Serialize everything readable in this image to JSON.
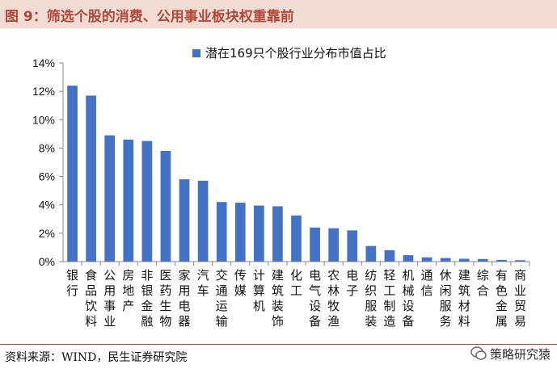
{
  "figure": {
    "title": "图 9：筛选个股的消费、公用事业板块权重靠前",
    "source": "资料来源：WIND，民生证券研究院",
    "watermark": "策略研究猿"
  },
  "colors": {
    "bar": "#4472c4",
    "title": "#b2473b",
    "title_bg": "#f0dcd2"
  },
  "chart_data": {
    "type": "bar",
    "categories": [
      "银行",
      "食品饮料",
      "公用事业",
      "房地产",
      "非银金融",
      "医药生物",
      "家用电器",
      "汽车",
      "交通运输",
      "传媒",
      "计算机",
      "建筑装饰",
      "化工",
      "电气设备",
      "农林牧渔",
      "电子",
      "纺织服装",
      "轻工制造",
      "机械设备",
      "通信",
      "休闲服务",
      "建筑材料",
      "综合",
      "有色金属",
      "商业贸易"
    ],
    "series": [
      {
        "name": "潜在169只个股行业分布市值占比",
        "values": [
          12.4,
          11.7,
          8.9,
          8.6,
          8.5,
          7.8,
          5.8,
          5.7,
          4.2,
          4.15,
          3.95,
          3.9,
          3.25,
          2.4,
          2.35,
          2.2,
          1.1,
          0.8,
          0.45,
          0.3,
          0.25,
          0.2,
          0.18,
          0.12,
          0.1
        ]
      }
    ],
    "yticks": [
      "0%",
      "2%",
      "4%",
      "6%",
      "8%",
      "10%",
      "12%",
      "14%"
    ],
    "ylim": [
      0,
      14
    ],
    "legend_position": "top-center"
  }
}
